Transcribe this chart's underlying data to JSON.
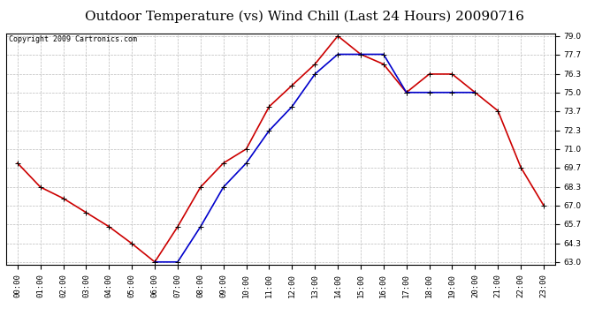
{
  "title": "Outdoor Temperature (vs) Wind Chill (Last 24 Hours) 20090716",
  "copyright_text": "Copyright 2009 Cartronics.com",
  "hours": [
    "00:00",
    "01:00",
    "02:00",
    "03:00",
    "04:00",
    "05:00",
    "06:00",
    "07:00",
    "08:00",
    "09:00",
    "10:00",
    "11:00",
    "12:00",
    "13:00",
    "14:00",
    "15:00",
    "16:00",
    "17:00",
    "18:00",
    "19:00",
    "20:00",
    "21:00",
    "22:00",
    "23:00"
  ],
  "temp": [
    70.0,
    68.3,
    67.5,
    66.5,
    65.5,
    64.3,
    63.0,
    65.5,
    68.3,
    70.0,
    71.0,
    74.0,
    75.5,
    77.0,
    79.0,
    77.7,
    77.0,
    75.0,
    76.3,
    76.3,
    75.0,
    73.7,
    69.7,
    67.0
  ],
  "wind_chill": [
    null,
    null,
    null,
    null,
    null,
    null,
    63.0,
    63.0,
    65.5,
    68.3,
    70.0,
    72.3,
    74.0,
    76.3,
    77.7,
    77.7,
    77.7,
    75.0,
    75.0,
    75.0,
    75.0,
    null,
    null,
    null
  ],
  "ylim": [
    63.0,
    79.0
  ],
  "yticks": [
    63.0,
    64.3,
    65.7,
    67.0,
    68.3,
    69.7,
    71.0,
    72.3,
    73.7,
    75.0,
    76.3,
    77.7,
    79.0
  ],
  "temp_color": "#cc0000",
  "wind_chill_color": "#0000cc",
  "background_color": "#ffffff",
  "plot_bg_color": "#ffffff",
  "grid_color": "#bbbbbb",
  "title_fontsize": 11,
  "copyright_fontsize": 6,
  "tick_fontsize": 6.5,
  "marker": "+",
  "marker_size": 5,
  "line_width": 1.2
}
